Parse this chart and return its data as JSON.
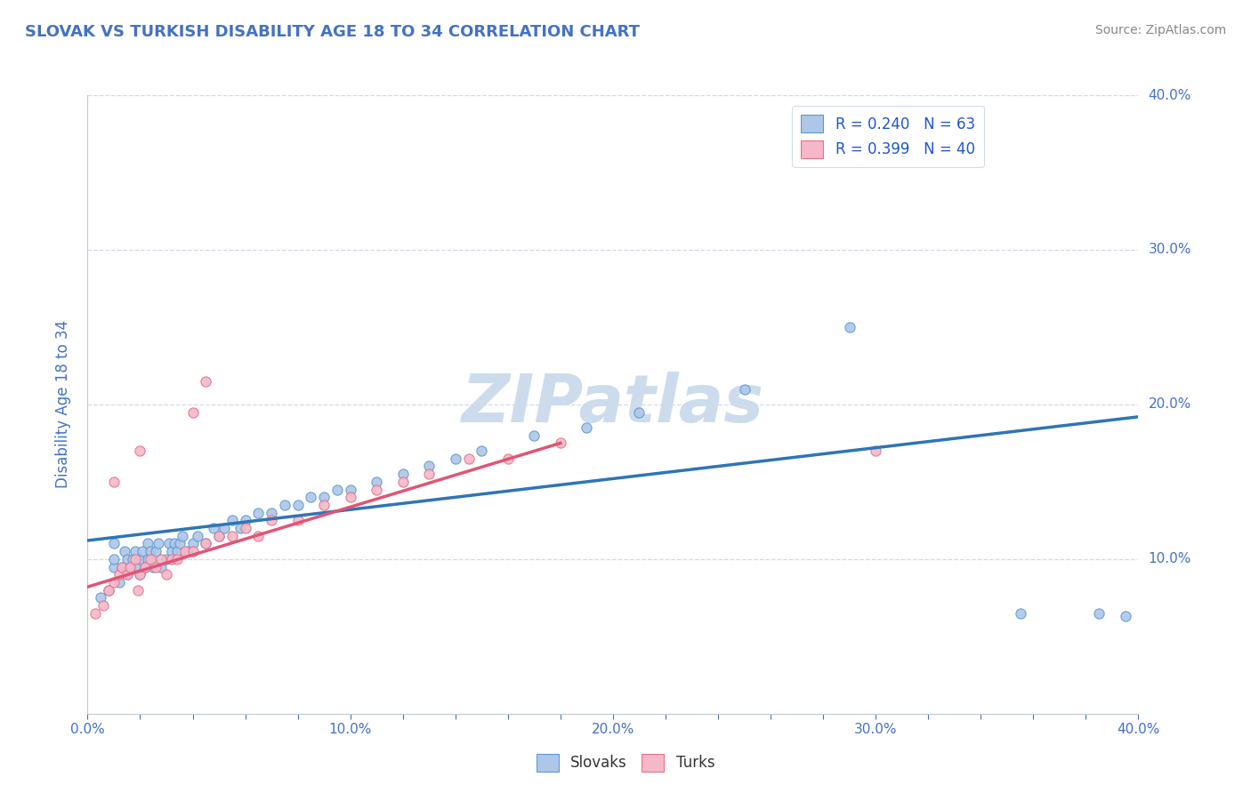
{
  "title": "SLOVAK VS TURKISH DISABILITY AGE 18 TO 34 CORRELATION CHART",
  "source_text": "Source: ZipAtlas.com",
  "ylabel": "Disability Age 18 to 34",
  "xlim": [
    0.0,
    0.4
  ],
  "ylim": [
    0.0,
    0.4
  ],
  "xtick_labels": [
    "0.0%",
    "",
    "",
    "",
    "",
    "10.0%",
    "",
    "",
    "",
    "",
    "20.0%",
    "",
    "",
    "",
    "",
    "30.0%",
    "",
    "",
    "",
    "",
    "40.0%"
  ],
  "xtick_vals": [
    0.0,
    0.02,
    0.04,
    0.06,
    0.08,
    0.1,
    0.12,
    0.14,
    0.16,
    0.18,
    0.2,
    0.22,
    0.24,
    0.26,
    0.28,
    0.3,
    0.32,
    0.34,
    0.36,
    0.38,
    0.4
  ],
  "ytick_labels": [
    "10.0%",
    "20.0%",
    "30.0%",
    "40.0%"
  ],
  "ytick_vals": [
    0.1,
    0.2,
    0.3,
    0.4
  ],
  "legend_labels": [
    "Slovaks",
    "Turks"
  ],
  "legend_R": [
    "R = 0.240",
    "R = 0.399"
  ],
  "legend_N": [
    "N = 63",
    "N = 40"
  ],
  "slovak_color": "#aec6e8",
  "turkish_color": "#f5b8c8",
  "slovak_edge_color": "#5b9bd5",
  "turkish_edge_color": "#e8708a",
  "slovak_line_color": "#2e75b6",
  "turkish_line_color": "#e05575",
  "watermark_color": "#cddcec",
  "title_color": "#4472c4",
  "axis_label_color": "#4472c4",
  "tick_color": "#4472c4",
  "legend_R_color": "#2255cc",
  "grid_color": "#d0d8ec",
  "background_color": "#ffffff",
  "slovak_scatter_x": [
    0.005,
    0.008,
    0.01,
    0.01,
    0.01,
    0.012,
    0.013,
    0.014,
    0.015,
    0.015,
    0.016,
    0.017,
    0.018,
    0.019,
    0.02,
    0.02,
    0.021,
    0.022,
    0.023,
    0.023,
    0.024,
    0.025,
    0.026,
    0.027,
    0.028,
    0.03,
    0.031,
    0.032,
    0.033,
    0.034,
    0.035,
    0.036,
    0.038,
    0.04,
    0.042,
    0.045,
    0.048,
    0.05,
    0.052,
    0.055,
    0.058,
    0.06,
    0.065,
    0.07,
    0.075,
    0.08,
    0.085,
    0.09,
    0.095,
    0.1,
    0.11,
    0.12,
    0.13,
    0.14,
    0.15,
    0.17,
    0.19,
    0.21,
    0.25,
    0.29,
    0.355,
    0.385,
    0.395
  ],
  "slovak_scatter_y": [
    0.075,
    0.08,
    0.095,
    0.1,
    0.11,
    0.085,
    0.095,
    0.105,
    0.09,
    0.1,
    0.095,
    0.1,
    0.105,
    0.095,
    0.09,
    0.1,
    0.105,
    0.095,
    0.1,
    0.11,
    0.105,
    0.095,
    0.105,
    0.11,
    0.095,
    0.1,
    0.11,
    0.105,
    0.11,
    0.105,
    0.11,
    0.115,
    0.105,
    0.11,
    0.115,
    0.11,
    0.12,
    0.115,
    0.12,
    0.125,
    0.12,
    0.125,
    0.13,
    0.13,
    0.135,
    0.135,
    0.14,
    0.14,
    0.145,
    0.145,
    0.15,
    0.155,
    0.16,
    0.165,
    0.17,
    0.18,
    0.185,
    0.195,
    0.21,
    0.25,
    0.065,
    0.065,
    0.063
  ],
  "turkish_scatter_x": [
    0.003,
    0.006,
    0.008,
    0.01,
    0.012,
    0.013,
    0.015,
    0.016,
    0.018,
    0.019,
    0.02,
    0.022,
    0.024,
    0.026,
    0.028,
    0.03,
    0.032,
    0.034,
    0.037,
    0.04,
    0.045,
    0.05,
    0.055,
    0.06,
    0.065,
    0.07,
    0.08,
    0.09,
    0.1,
    0.11,
    0.12,
    0.13,
    0.145,
    0.16,
    0.18,
    0.01,
    0.02,
    0.04,
    0.045,
    0.3
  ],
  "turkish_scatter_y": [
    0.065,
    0.07,
    0.08,
    0.085,
    0.09,
    0.095,
    0.09,
    0.095,
    0.1,
    0.08,
    0.09,
    0.095,
    0.1,
    0.095,
    0.1,
    0.09,
    0.1,
    0.1,
    0.105,
    0.105,
    0.11,
    0.115,
    0.115,
    0.12,
    0.115,
    0.125,
    0.125,
    0.135,
    0.14,
    0.145,
    0.15,
    0.155,
    0.165,
    0.165,
    0.175,
    0.15,
    0.17,
    0.195,
    0.215,
    0.17
  ],
  "slovak_trend_x": [
    0.0,
    0.4
  ],
  "slovak_trend_y": [
    0.112,
    0.192
  ],
  "turkish_trend_x": [
    0.0,
    0.18
  ],
  "turkish_trend_y": [
    0.082,
    0.175
  ],
  "marker_size": 65,
  "marker_linewidth": 0.8
}
